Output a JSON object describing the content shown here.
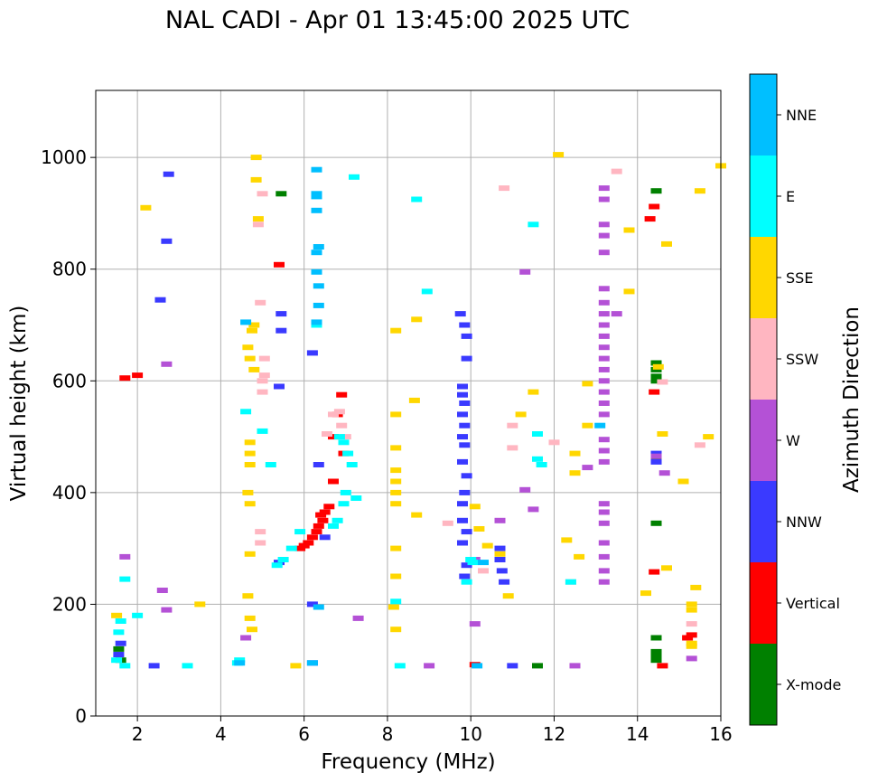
{
  "chart_data": {
    "type": "scatter",
    "title": "NAL CADI - Apr 01 13:45:00 2025 UTC",
    "xlabel": "Frequency (MHz)",
    "ylabel": "Virtual height (km)",
    "xlim": [
      1,
      16
    ],
    "ylim": [
      0,
      1120
    ],
    "xticks": [
      2,
      4,
      6,
      8,
      10,
      12,
      14,
      16
    ],
    "yticks": [
      0,
      200,
      400,
      600,
      800,
      1000
    ],
    "grid": true,
    "colorbar": {
      "label": "Azimuth Direction",
      "categories": [
        {
          "name": "X-mode",
          "color": "#008000"
        },
        {
          "name": "Vertical",
          "color": "#ff0000"
        },
        {
          "name": "NNW",
          "color": "#3a3aff"
        },
        {
          "name": "W",
          "color": "#b451d6"
        },
        {
          "name": "SSW",
          "color": "#ffb6c1"
        },
        {
          "name": "SSE",
          "color": "#ffd700"
        },
        {
          "name": "E",
          "color": "#00ffff"
        },
        {
          "name": "NNE",
          "color": "#00bfff"
        }
      ]
    },
    "series": [
      {
        "name": "X-mode",
        "points": [
          [
            14.45,
            632
          ],
          [
            14.45,
            620
          ],
          [
            14.45,
            608
          ],
          [
            14.45,
            600
          ],
          [
            14.45,
            460
          ],
          [
            14.45,
            345
          ],
          [
            14.45,
            140
          ],
          [
            14.45,
            115
          ],
          [
            14.45,
            108
          ],
          [
            14.45,
            100
          ],
          [
            11.6,
            90
          ],
          [
            1.55,
            120
          ],
          [
            1.6,
            100
          ],
          [
            5.45,
            935
          ],
          [
            14.45,
            940
          ]
        ]
      },
      {
        "name": "Vertical",
        "points": [
          [
            6.3,
            330
          ],
          [
            6.35,
            340
          ],
          [
            6.45,
            350
          ],
          [
            6.5,
            365
          ],
          [
            6.4,
            360
          ],
          [
            6.2,
            320
          ],
          [
            6.1,
            310
          ],
          [
            6.0,
            305
          ],
          [
            5.9,
            300
          ],
          [
            6.6,
            375
          ],
          [
            6.7,
            420
          ],
          [
            6.8,
            540
          ],
          [
            6.9,
            575
          ],
          [
            6.7,
            500
          ],
          [
            6.95,
            470
          ],
          [
            14.3,
            890
          ],
          [
            14.4,
            258
          ],
          [
            15.3,
            145
          ],
          [
            15.2,
            140
          ],
          [
            10.1,
            92
          ],
          [
            2.0,
            610
          ],
          [
            1.7,
            605
          ],
          [
            14.6,
            90
          ],
          [
            14.4,
            580
          ],
          [
            5.4,
            808
          ],
          [
            14.4,
            912
          ]
        ]
      },
      {
        "name": "NNW",
        "points": [
          [
            9.8,
            590
          ],
          [
            9.8,
            575
          ],
          [
            9.85,
            560
          ],
          [
            9.8,
            540
          ],
          [
            9.85,
            520
          ],
          [
            9.8,
            500
          ],
          [
            9.85,
            485
          ],
          [
            9.8,
            455
          ],
          [
            9.9,
            430
          ],
          [
            9.85,
            400
          ],
          [
            9.8,
            380
          ],
          [
            9.8,
            350
          ],
          [
            9.9,
            330
          ],
          [
            9.8,
            310
          ],
          [
            9.9,
            270
          ],
          [
            9.85,
            250
          ],
          [
            9.75,
            720
          ],
          [
            9.85,
            700
          ],
          [
            9.9,
            680
          ],
          [
            9.9,
            640
          ],
          [
            10.7,
            300
          ],
          [
            10.7,
            280
          ],
          [
            10.75,
            260
          ],
          [
            10.8,
            240
          ],
          [
            6.2,
            650
          ],
          [
            6.2,
            200
          ],
          [
            6.35,
            450
          ],
          [
            6.5,
            320
          ],
          [
            5.45,
            720
          ],
          [
            5.45,
            690
          ],
          [
            5.4,
            590
          ],
          [
            2.7,
            850
          ],
          [
            2.75,
            970
          ],
          [
            2.55,
            745
          ],
          [
            1.6,
            130
          ],
          [
            1.55,
            110
          ],
          [
            2.4,
            90
          ],
          [
            14.45,
            470
          ],
          [
            14.45,
            455
          ],
          [
            6.2,
            95
          ],
          [
            11.0,
            90
          ],
          [
            5.4,
            275
          ]
        ]
      },
      {
        "name": "W",
        "points": [
          [
            13.2,
            945
          ],
          [
            13.2,
            925
          ],
          [
            13.2,
            880
          ],
          [
            13.2,
            860
          ],
          [
            13.2,
            830
          ],
          [
            13.2,
            765
          ],
          [
            13.2,
            740
          ],
          [
            13.2,
            720
          ],
          [
            13.2,
            700
          ],
          [
            13.2,
            680
          ],
          [
            13.2,
            660
          ],
          [
            13.2,
            640
          ],
          [
            13.2,
            620
          ],
          [
            13.2,
            600
          ],
          [
            13.2,
            580
          ],
          [
            13.2,
            560
          ],
          [
            13.2,
            540
          ],
          [
            13.2,
            495
          ],
          [
            13.2,
            475
          ],
          [
            13.2,
            455
          ],
          [
            13.2,
            380
          ],
          [
            13.2,
            365
          ],
          [
            13.2,
            345
          ],
          [
            13.2,
            310
          ],
          [
            13.2,
            285
          ],
          [
            13.2,
            260
          ],
          [
            13.2,
            240
          ],
          [
            14.45,
            465
          ],
          [
            14.65,
            435
          ],
          [
            15.3,
            103
          ],
          [
            10.1,
            165
          ],
          [
            10.1,
            280
          ],
          [
            10.7,
            350
          ],
          [
            11.3,
            405
          ],
          [
            11.5,
            370
          ],
          [
            2.7,
            630
          ],
          [
            2.7,
            190
          ],
          [
            2.6,
            225
          ],
          [
            1.7,
            285
          ],
          [
            4.6,
            140
          ],
          [
            7.3,
            175
          ],
          [
            9.0,
            90
          ],
          [
            12.5,
            90
          ],
          [
            12.8,
            445
          ],
          [
            13.5,
            720
          ],
          [
            11.3,
            795
          ]
        ]
      },
      {
        "name": "SSW",
        "points": [
          [
            6.55,
            505
          ],
          [
            6.7,
            540
          ],
          [
            6.85,
            545
          ],
          [
            6.9,
            520
          ],
          [
            7.0,
            500
          ],
          [
            5.0,
            600
          ],
          [
            5.0,
            580
          ],
          [
            4.95,
            330
          ],
          [
            4.95,
            310
          ],
          [
            5.0,
            935
          ],
          [
            4.9,
            880
          ],
          [
            4.95,
            740
          ],
          [
            5.05,
            640
          ],
          [
            5.05,
            610
          ],
          [
            12.4,
            240
          ],
          [
            15.3,
            165
          ],
          [
            15.5,
            485
          ],
          [
            14.6,
            598
          ],
          [
            9.45,
            345
          ],
          [
            10.3,
            260
          ],
          [
            11.0,
            480
          ],
          [
            11.0,
            520
          ],
          [
            12.0,
            490
          ],
          [
            10.8,
            945
          ],
          [
            13.5,
            975
          ]
        ]
      },
      {
        "name": "SSE",
        "points": [
          [
            4.7,
            490
          ],
          [
            4.7,
            470
          ],
          [
            4.7,
            450
          ],
          [
            4.65,
            400
          ],
          [
            4.7,
            380
          ],
          [
            4.7,
            290
          ],
          [
            4.65,
            215
          ],
          [
            4.7,
            175
          ],
          [
            4.75,
            155
          ],
          [
            4.8,
            700
          ],
          [
            4.75,
            690
          ],
          [
            4.65,
            660
          ],
          [
            4.7,
            640
          ],
          [
            4.8,
            620
          ],
          [
            4.9,
            890
          ],
          [
            4.85,
            960
          ],
          [
            4.85,
            1000
          ],
          [
            8.2,
            690
          ],
          [
            8.2,
            540
          ],
          [
            8.2,
            480
          ],
          [
            8.2,
            440
          ],
          [
            8.2,
            420
          ],
          [
            8.2,
            400
          ],
          [
            8.2,
            380
          ],
          [
            8.2,
            300
          ],
          [
            8.2,
            250
          ],
          [
            8.15,
            195
          ],
          [
            8.2,
            155
          ],
          [
            15.4,
            230
          ],
          [
            15.3,
            200
          ],
          [
            15.3,
            190
          ],
          [
            15.3,
            130
          ],
          [
            15.3,
            125
          ],
          [
            15.7,
            500
          ],
          [
            15.5,
            940
          ],
          [
            14.5,
            625
          ],
          [
            14.6,
            505
          ],
          [
            13.8,
            760
          ],
          [
            13.8,
            870
          ],
          [
            12.8,
            595
          ],
          [
            12.8,
            520
          ],
          [
            12.5,
            470
          ],
          [
            12.5,
            435
          ],
          [
            12.6,
            285
          ],
          [
            12.3,
            315
          ],
          [
            11.5,
            580
          ],
          [
            11.2,
            540
          ],
          [
            10.1,
            375
          ],
          [
            10.2,
            335
          ],
          [
            10.4,
            305
          ],
          [
            10.7,
            290
          ],
          [
            12.1,
            1005
          ],
          [
            16.0,
            985
          ],
          [
            14.7,
            845
          ],
          [
            15.1,
            420
          ],
          [
            14.7,
            265
          ],
          [
            14.2,
            220
          ],
          [
            8.7,
            710
          ],
          [
            8.65,
            565
          ],
          [
            8.7,
            360
          ],
          [
            10.9,
            215
          ],
          [
            5.8,
            90
          ],
          [
            1.5,
            180
          ],
          [
            2.2,
            910
          ],
          [
            3.5,
            200
          ]
        ]
      },
      {
        "name": "E",
        "points": [
          [
            6.85,
            500
          ],
          [
            6.95,
            490
          ],
          [
            7.05,
            470
          ],
          [
            7.15,
            450
          ],
          [
            7.0,
            400
          ],
          [
            7.25,
            390
          ],
          [
            6.95,
            380
          ],
          [
            6.8,
            350
          ],
          [
            6.7,
            340
          ],
          [
            5.9,
            330
          ],
          [
            5.7,
            300
          ],
          [
            5.5,
            280
          ],
          [
            5.35,
            270
          ],
          [
            1.5,
            100
          ],
          [
            1.55,
            150
          ],
          [
            1.6,
            170
          ],
          [
            1.7,
            90
          ],
          [
            4.4,
            95
          ],
          [
            4.45,
            100
          ],
          [
            1.7,
            245
          ],
          [
            2.0,
            180
          ],
          [
            10.0,
            280
          ],
          [
            10.05,
            275
          ],
          [
            9.9,
            240
          ],
          [
            12.4,
            240
          ],
          [
            11.6,
            460
          ],
          [
            11.7,
            450
          ],
          [
            11.6,
            505
          ],
          [
            8.2,
            205
          ],
          [
            8.3,
            90
          ],
          [
            6.3,
            700
          ],
          [
            7.2,
            965
          ],
          [
            8.7,
            925
          ],
          [
            8.95,
            760
          ],
          [
            11.5,
            880
          ],
          [
            5.2,
            450
          ],
          [
            5.0,
            510
          ],
          [
            3.2,
            90
          ],
          [
            4.6,
            545
          ]
        ]
      },
      {
        "name": "NNE",
        "points": [
          [
            6.3,
            978
          ],
          [
            6.3,
            935
          ],
          [
            6.3,
            905
          ],
          [
            6.35,
            840
          ],
          [
            6.3,
            830
          ],
          [
            6.3,
            795
          ],
          [
            6.35,
            735
          ],
          [
            6.3,
            705
          ],
          [
            6.35,
            770
          ],
          [
            6.3,
            930
          ],
          [
            4.6,
            705
          ],
          [
            4.45,
            95
          ],
          [
            6.35,
            195
          ],
          [
            6.2,
            95
          ],
          [
            10.3,
            275
          ],
          [
            10.15,
            90
          ],
          [
            13.1,
            520
          ]
        ]
      }
    ]
  }
}
